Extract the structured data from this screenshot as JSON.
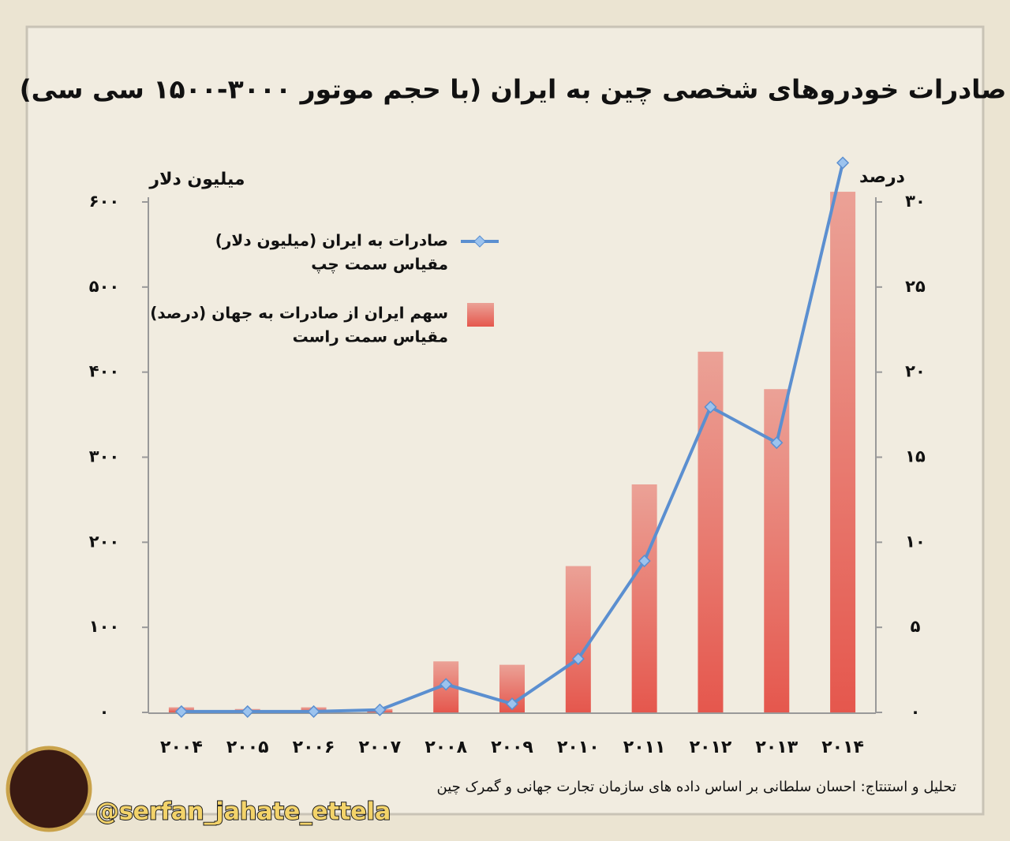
{
  "chart_data": {
    "type": "combo",
    "title": "صادرات خودروهای شخصی چین به ایران (با حجم موتور ۳۰۰۰-۱۵۰۰ سی سی)",
    "y_label": "میلیون دلار",
    "y2_label": "درصد",
    "categories": [
      "۲۰۰۴",
      "۲۰۰۵",
      "۲۰۰۶",
      "۲۰۰۷",
      "۲۰۰۸",
      "۲۰۰۹",
      "۲۰۱۰",
      "۲۰۱۱",
      "۲۰۱۲",
      "۲۰۱۳",
      "۲۰۱۴"
    ],
    "series": [
      {
        "name": "صادرات به ایران (میلیون دلار)",
        "legend_note": "مقیاس سمت چپ",
        "type": "line",
        "axis": "y",
        "color": "#5b8fd0",
        "values": [
          1,
          1,
          1,
          3,
          33,
          10,
          63,
          178,
          359,
          317,
          646
        ]
      },
      {
        "name": "سهم ایران از صادرات به جهان (درصد)",
        "legend_note": "مقیاس سمت راست",
        "type": "bar",
        "axis": "y2",
        "color": "#e5574d",
        "values": [
          0.3,
          0.2,
          0.3,
          0.2,
          3.0,
          2.8,
          8.6,
          13.4,
          21.2,
          19.0,
          30.6
        ]
      }
    ],
    "ylim": [
      0,
      600
    ],
    "yticks": [
      {
        "value": 0,
        "label": "٠"
      },
      {
        "value": 100,
        "label": "۱۰۰"
      },
      {
        "value": 200,
        "label": "۲۰۰"
      },
      {
        "value": 300,
        "label": "۳۰۰"
      },
      {
        "value": 400,
        "label": "۴۰۰"
      },
      {
        "value": 500,
        "label": "۵۰۰"
      },
      {
        "value": 600,
        "label": "۶۰۰"
      }
    ],
    "y2lim": [
      0,
      30
    ],
    "y2ticks": [
      {
        "value": 0,
        "label": "٠"
      },
      {
        "value": 5,
        "label": "۵"
      },
      {
        "value": 10,
        "label": "۱۰"
      },
      {
        "value": 15,
        "label": "۱۵"
      },
      {
        "value": 20,
        "label": "۲۰"
      },
      {
        "value": 25,
        "label": "۲۵"
      },
      {
        "value": 30,
        "label": "۳۰"
      }
    ],
    "source": "تحلیل و استنتاج: احسان سلطانی بر اساس داده های سازمان تجارت جهانی و گمرک چین"
  },
  "watermark": "@serfan_jahate_ettela"
}
